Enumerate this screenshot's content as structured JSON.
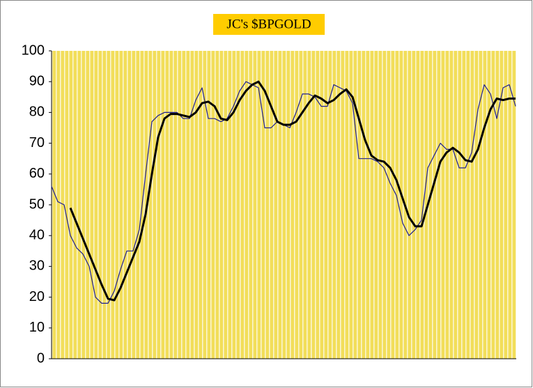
{
  "chart_data": {
    "type": "line",
    "title": "JC's $BPGOLD",
    "categories": [
      null,
      null,
      null,
      null,
      null,
      null,
      null,
      null,
      null,
      null,
      null,
      null,
      null,
      null,
      null,
      null,
      null,
      null,
      null,
      null,
      null,
      null,
      null,
      null,
      null,
      null,
      null,
      null,
      null,
      null,
      null,
      null,
      null,
      null,
      null,
      null,
      null,
      null,
      null,
      null,
      null,
      null,
      null,
      null,
      null,
      null,
      null,
      null,
      null,
      null,
      null,
      null,
      null,
      null,
      null,
      null,
      null,
      null,
      null,
      null,
      null,
      null,
      null,
      null,
      null,
      null,
      null,
      null,
      null,
      null,
      null,
      null,
      null,
      null,
      null
    ],
    "series": [
      {
        "color": "#1f1f8f",
        "width": 1.2,
        "values": [
          56,
          51,
          50,
          40,
          36,
          34,
          30,
          20,
          18,
          18,
          22,
          29,
          35,
          35,
          42,
          60,
          77,
          79,
          80,
          80,
          80,
          78,
          78,
          84,
          88,
          78,
          78,
          77,
          78,
          82,
          87,
          90,
          89,
          88,
          75,
          75,
          77,
          76,
          75,
          80,
          86,
          86,
          85,
          82,
          82,
          89,
          88,
          87,
          83,
          65,
          65,
          65,
          64,
          62,
          57,
          53,
          44,
          40,
          42,
          45,
          62,
          66,
          70,
          68,
          68,
          62,
          62,
          67,
          81,
          89,
          86,
          78,
          88,
          89,
          82
        ]
      },
      {
        "color": "#000000",
        "width": 3,
        "values": [
          null,
          null,
          null,
          49,
          44,
          39,
          34,
          29,
          24,
          19.5,
          19,
          23,
          28,
          33,
          38,
          47,
          60,
          72,
          78,
          79.5,
          79.5,
          79,
          78.5,
          80,
          83,
          83.5,
          82,
          78,
          77.5,
          80,
          84,
          87,
          89,
          90,
          87,
          82,
          77,
          76,
          76,
          77,
          80,
          83,
          85.5,
          84.5,
          83,
          84,
          86,
          87.5,
          85,
          78,
          71,
          66,
          64.5,
          64,
          62,
          58,
          52,
          46,
          43,
          43,
          50,
          57,
          64,
          67,
          68.5,
          67,
          64.5,
          64,
          68,
          75,
          81,
          84.5,
          84,
          84.5,
          84.5
        ]
      }
    ],
    "ylim": [
      0,
      100
    ],
    "yticks": [
      0,
      10,
      20,
      30,
      40,
      50,
      60,
      70,
      80,
      90,
      100
    ],
    "grid": false
  }
}
